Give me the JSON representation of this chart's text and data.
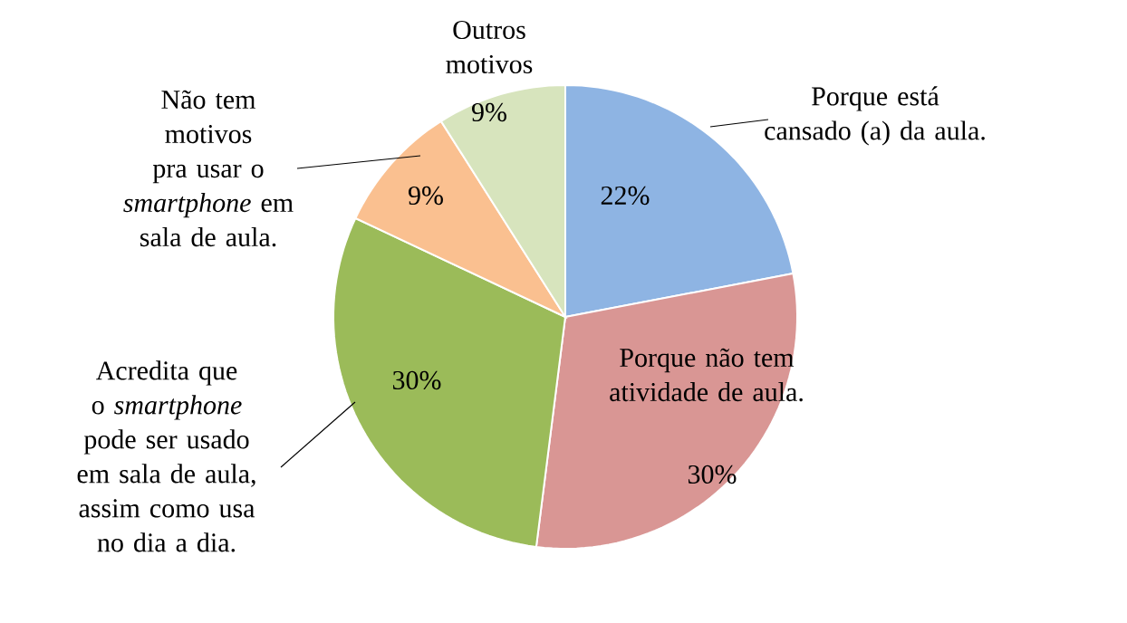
{
  "chart_data": {
    "type": "pie",
    "categories": [
      "Porque está cansado (a) da aula.",
      "Porque não tem atividade de aula.",
      "Acredita que o *smartphone* pode ser usado em sala de aula, assim como usa no dia a dia.",
      "Não tem motivos pra usar o *smartphone* em sala de aula.",
      "Outros motivos"
    ],
    "values": [
      22,
      30,
      30,
      9,
      9
    ],
    "value_labels": [
      "22%",
      "30%",
      "30%",
      "9%",
      "9%"
    ],
    "colors": [
      "#8eb4e3",
      "#d99694",
      "#9bbb59",
      "#fac090",
      "#d7e4bd"
    ]
  }
}
